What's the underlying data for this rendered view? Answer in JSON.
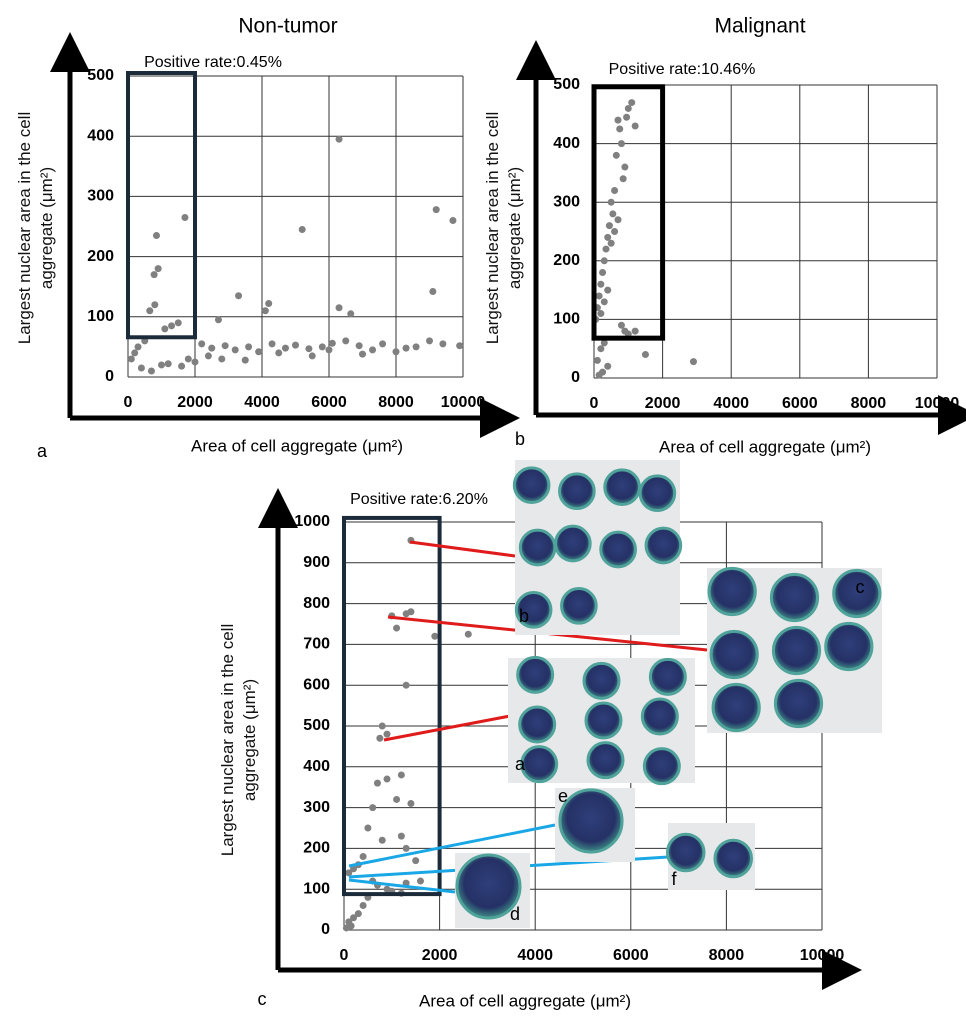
{
  "chart_data": [
    {
      "type": "scatter",
      "title": "Non-tumor",
      "annotation": "Positive rate:0.45%",
      "panel": "a",
      "xlabel": "Area of cell aggregate (μm²)",
      "ylabel": "Largest nuclear area in the cell aggregate (μm²)",
      "color": "#808080",
      "grid": true,
      "xlim": [
        0,
        10000
      ],
      "ylim": [
        0,
        500
      ],
      "xticks": [
        0,
        2000,
        4000,
        6000,
        8000,
        10000
      ],
      "yticks": [
        0,
        100,
        200,
        300,
        400,
        500
      ],
      "highlight": {
        "xlim": [
          0,
          2000
        ],
        "ylim": [
          66,
          505
        ]
      },
      "x": [
        1700,
        850,
        900,
        780,
        6300,
        5200,
        9200,
        9700,
        9100,
        3300,
        4200,
        4100,
        800,
        650,
        6300,
        6650,
        2700,
        1500,
        1300,
        1100,
        500,
        300,
        200,
        100,
        2200,
        2500,
        2900,
        3200,
        3600,
        3900,
        4300,
        4700,
        5000,
        5400,
        5800,
        6100,
        6500,
        6900,
        7300,
        7600,
        8000,
        8300,
        8600,
        9000,
        9400,
        9900,
        1000,
        1800,
        2000,
        2400,
        3500,
        4500,
        5500,
        6000,
        7000,
        400,
        700,
        1200,
        1600,
        2800
      ],
      "y": [
        265,
        235,
        180,
        170,
        395,
        245,
        278,
        260,
        142,
        135,
        122,
        110,
        120,
        110,
        115,
        105,
        95,
        90,
        85,
        80,
        60,
        50,
        40,
        30,
        55,
        48,
        52,
        45,
        50,
        42,
        55,
        48,
        53,
        47,
        50,
        56,
        60,
        52,
        45,
        55,
        42,
        48,
        50,
        60,
        55,
        52,
        20,
        30,
        25,
        35,
        28,
        40,
        35,
        45,
        38,
        15,
        10,
        22,
        18,
        30
      ]
    },
    {
      "type": "scatter",
      "title": "Malignant",
      "annotation": "Positive rate:10.46%",
      "panel": "b",
      "xlabel": "Area of cell aggregate (μm²)",
      "ylabel": "Largest nuclear area in the cell aggregate (μm²)",
      "color": "#808080",
      "grid": true,
      "xlim": [
        0,
        10000
      ],
      "ylim": [
        0,
        500
      ],
      "xticks": [
        0,
        2000,
        4000,
        6000,
        8000,
        10000
      ],
      "yticks": [
        0,
        100,
        200,
        300,
        400,
        500
      ],
      "highlight": {
        "xlim": [
          0,
          2000
        ],
        "ylim": [
          68,
          497
        ]
      },
      "x": [
        1100,
        1000,
        950,
        1200,
        700,
        750,
        800,
        650,
        900,
        850,
        600,
        500,
        550,
        450,
        400,
        350,
        300,
        250,
        200,
        150,
        100,
        50,
        700,
        600,
        500,
        400,
        300,
        200,
        800,
        900,
        1000,
        1200,
        2900,
        1500,
        300,
        200,
        100,
        400,
        250,
        150
      ],
      "y": [
        470,
        460,
        445,
        430,
        440,
        425,
        400,
        380,
        360,
        340,
        320,
        300,
        280,
        260,
        240,
        220,
        200,
        180,
        160,
        140,
        120,
        100,
        270,
        250,
        230,
        150,
        130,
        110,
        90,
        80,
        75,
        80,
        28,
        40,
        60,
        50,
        30,
        20,
        10,
        5
      ]
    },
    {
      "type": "scatter",
      "annotation": "Positive rate:6.20%",
      "panel": "c",
      "xlabel": "Area of cell aggregate (μm²)",
      "ylabel": "Largest nuclear area in the cell aggregate (μm²)",
      "color": "#808080",
      "grid": true,
      "xlim": [
        0,
        10000
      ],
      "ylim": [
        0,
        1000
      ],
      "xticks": [
        0,
        2000,
        4000,
        6000,
        8000,
        10000
      ],
      "yticks": [
        0,
        100,
        200,
        300,
        400,
        500,
        600,
        700,
        800,
        900,
        1000
      ],
      "highlight": {
        "xlim": [
          0,
          2000
        ],
        "ylim": [
          88,
          1010
        ]
      },
      "image_labels": [
        "a",
        "b",
        "c",
        "d",
        "e",
        "f"
      ],
      "x": [
        1400,
        1000,
        1300,
        1400,
        1900,
        2600,
        1100,
        1300,
        800,
        900,
        750,
        1200,
        900,
        700,
        1100,
        1400,
        1200,
        600,
        500,
        800,
        1300,
        1500,
        400,
        300,
        200,
        100,
        600,
        700,
        900,
        1000,
        1200,
        1300,
        1600,
        500,
        400,
        300,
        200,
        100,
        150,
        50
      ],
      "y": [
        955,
        770,
        775,
        780,
        720,
        725,
        740,
        600,
        500,
        480,
        470,
        380,
        370,
        360,
        320,
        310,
        230,
        300,
        250,
        220,
        200,
        170,
        180,
        160,
        150,
        140,
        120,
        110,
        100,
        95,
        90,
        115,
        120,
        80,
        60,
        40,
        30,
        20,
        10,
        5
      ]
    }
  ]
}
